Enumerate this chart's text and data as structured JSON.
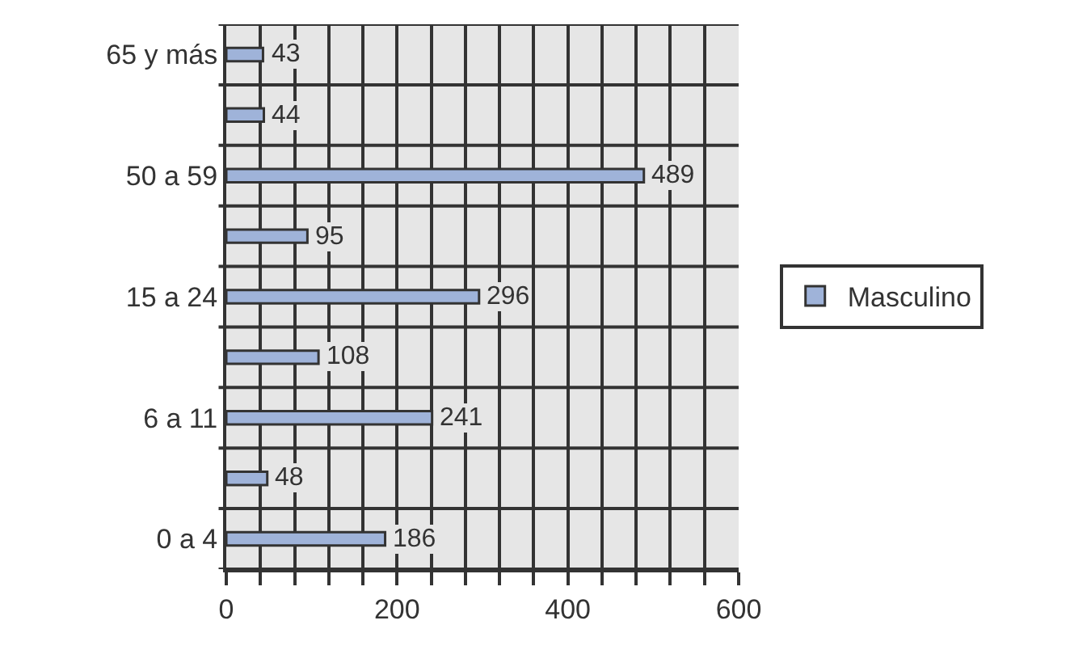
{
  "chart_data": {
    "type": "bar",
    "orientation": "horizontal",
    "categories": [
      "65 y más",
      null,
      "50 a 59",
      null,
      "15 a 24",
      null,
      "6 a 11",
      null,
      "0 a 4"
    ],
    "series": [
      {
        "name": "Masculino",
        "color": "#9fb3d9",
        "values": [
          43,
          44,
          489,
          95,
          296,
          108,
          241,
          48,
          186
        ]
      }
    ],
    "xlim": [
      0,
      600
    ],
    "xticks": [
      0,
      {
        "value": 40,
        "label": null
      },
      {
        "value": 80,
        "label": null
      },
      {
        "value": 120,
        "label": null
      },
      {
        "value": 160,
        "label": null
      },
      200,
      {
        "value": 240,
        "label": null
      },
      {
        "value": 280,
        "label": null
      },
      {
        "value": 320,
        "label": null
      },
      {
        "value": 360,
        "label": null
      },
      400,
      {
        "value": 440,
        "label": null
      },
      {
        "value": 480,
        "label": null
      },
      {
        "value": 520,
        "label": null
      },
      {
        "value": 560,
        "label": null
      },
      600
    ],
    "grid": true,
    "legend": "right",
    "data_labels": true
  }
}
